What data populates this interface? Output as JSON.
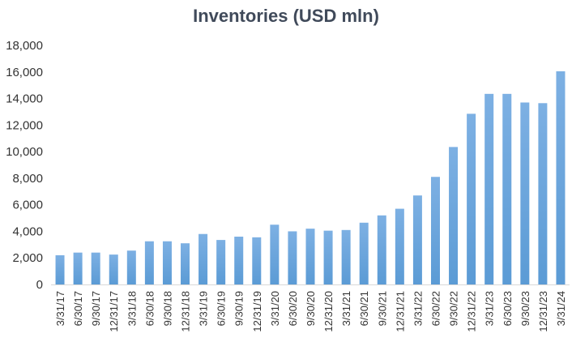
{
  "chart_data": {
    "type": "bar",
    "title": "Inventories (USD mln)",
    "xlabel": "",
    "ylabel": "",
    "ylim": [
      0,
      18000
    ],
    "yticks": [
      "0",
      "2,000",
      "4,000",
      "6,000",
      "8,000",
      "10,000",
      "12,000",
      "14,000",
      "16,000",
      "18,000"
    ],
    "grid": false,
    "legend": "none",
    "bar_color": "#5b9bd5",
    "categories": [
      "3/31/17",
      "6/30/17",
      "9/30/17",
      "12/31/17",
      "3/31/18",
      "6/30/18",
      "9/30/18",
      "12/31/18",
      "3/31/19",
      "6/30/19",
      "9/30/19",
      "12/31/19",
      "3/31/20",
      "6/30/20",
      "9/30/20",
      "12/31/20",
      "3/31/21",
      "6/30/21",
      "9/30/21",
      "12/31/21",
      "3/31/22",
      "6/30/22",
      "9/30/22",
      "12/31/22",
      "3/31/23",
      "6/30/23",
      "9/30/23",
      "12/31/23",
      "3/31/24"
    ],
    "values": [
      2200,
      2400,
      2400,
      2250,
      2550,
      3250,
      3250,
      3100,
      3800,
      3350,
      3600,
      3550,
      4500,
      4000,
      4200,
      4050,
      4100,
      4650,
      5200,
      5700,
      6700,
      8100,
      10350,
      12850,
      14350,
      14350,
      13700,
      13650,
      16050
    ]
  }
}
